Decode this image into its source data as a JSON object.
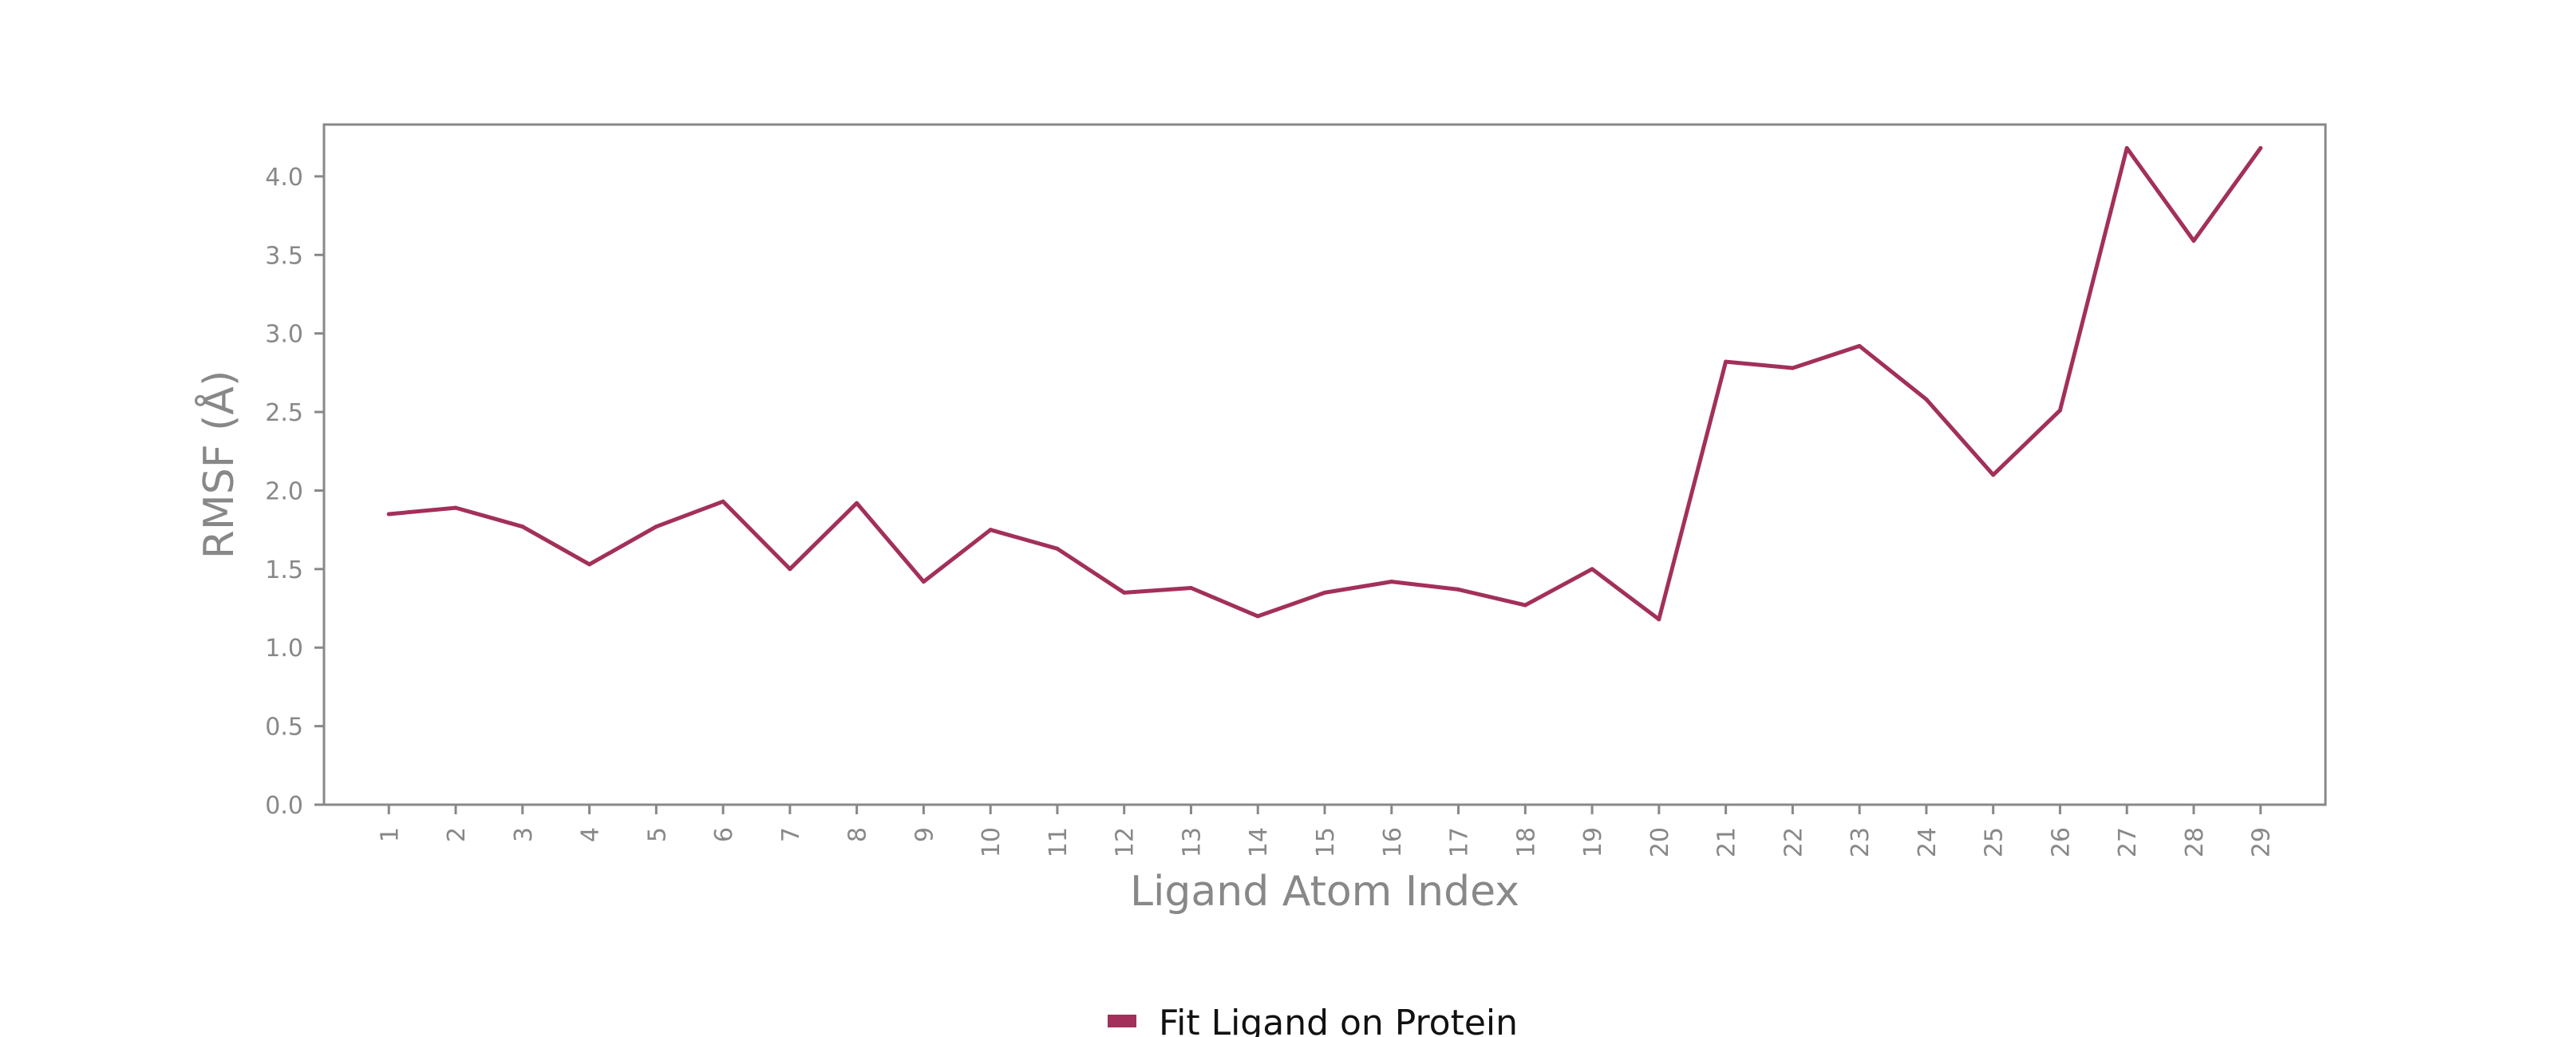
{
  "chart_data": {
    "type": "line",
    "title": "",
    "xlabel": "Ligand Atom Index",
    "ylabel": "RMSF (Å)",
    "x": [
      1,
      2,
      3,
      4,
      5,
      6,
      7,
      8,
      9,
      10,
      11,
      12,
      13,
      14,
      15,
      16,
      17,
      18,
      19,
      20,
      21,
      22,
      23,
      24,
      25,
      26,
      27,
      28,
      29
    ],
    "xticks": [
      "1",
      "2",
      "3",
      "4",
      "5",
      "6",
      "7",
      "8",
      "9",
      "10",
      "11",
      "12",
      "13",
      "14",
      "15",
      "16",
      "17",
      "18",
      "19",
      "20",
      "21",
      "22",
      "23",
      "24",
      "25",
      "26",
      "27",
      "28",
      "29"
    ],
    "xlim": [
      0.03,
      29.97
    ],
    "ylim": [
      0,
      4.33
    ],
    "yticks": [
      0.0,
      0.5,
      1.0,
      1.5,
      2.0,
      2.5,
      3.0,
      3.5,
      4.0
    ],
    "ytick_labels": [
      "0.0",
      "0.5",
      "1.0",
      "1.5",
      "2.0",
      "2.5",
      "3.0",
      "3.5",
      "4.0"
    ],
    "grid": false,
    "legend_position": "bottom-center",
    "series": [
      {
        "name": "Fit Ligand on Protein",
        "color": "#a2305a",
        "values": [
          1.85,
          1.89,
          1.77,
          1.53,
          1.77,
          1.93,
          1.5,
          1.92,
          1.42,
          1.75,
          1.63,
          1.35,
          1.38,
          1.2,
          1.35,
          1.42,
          1.37,
          1.27,
          1.5,
          1.18,
          2.82,
          2.78,
          2.92,
          2.58,
          2.1,
          2.51,
          4.18,
          3.59,
          4.18
        ]
      }
    ]
  }
}
